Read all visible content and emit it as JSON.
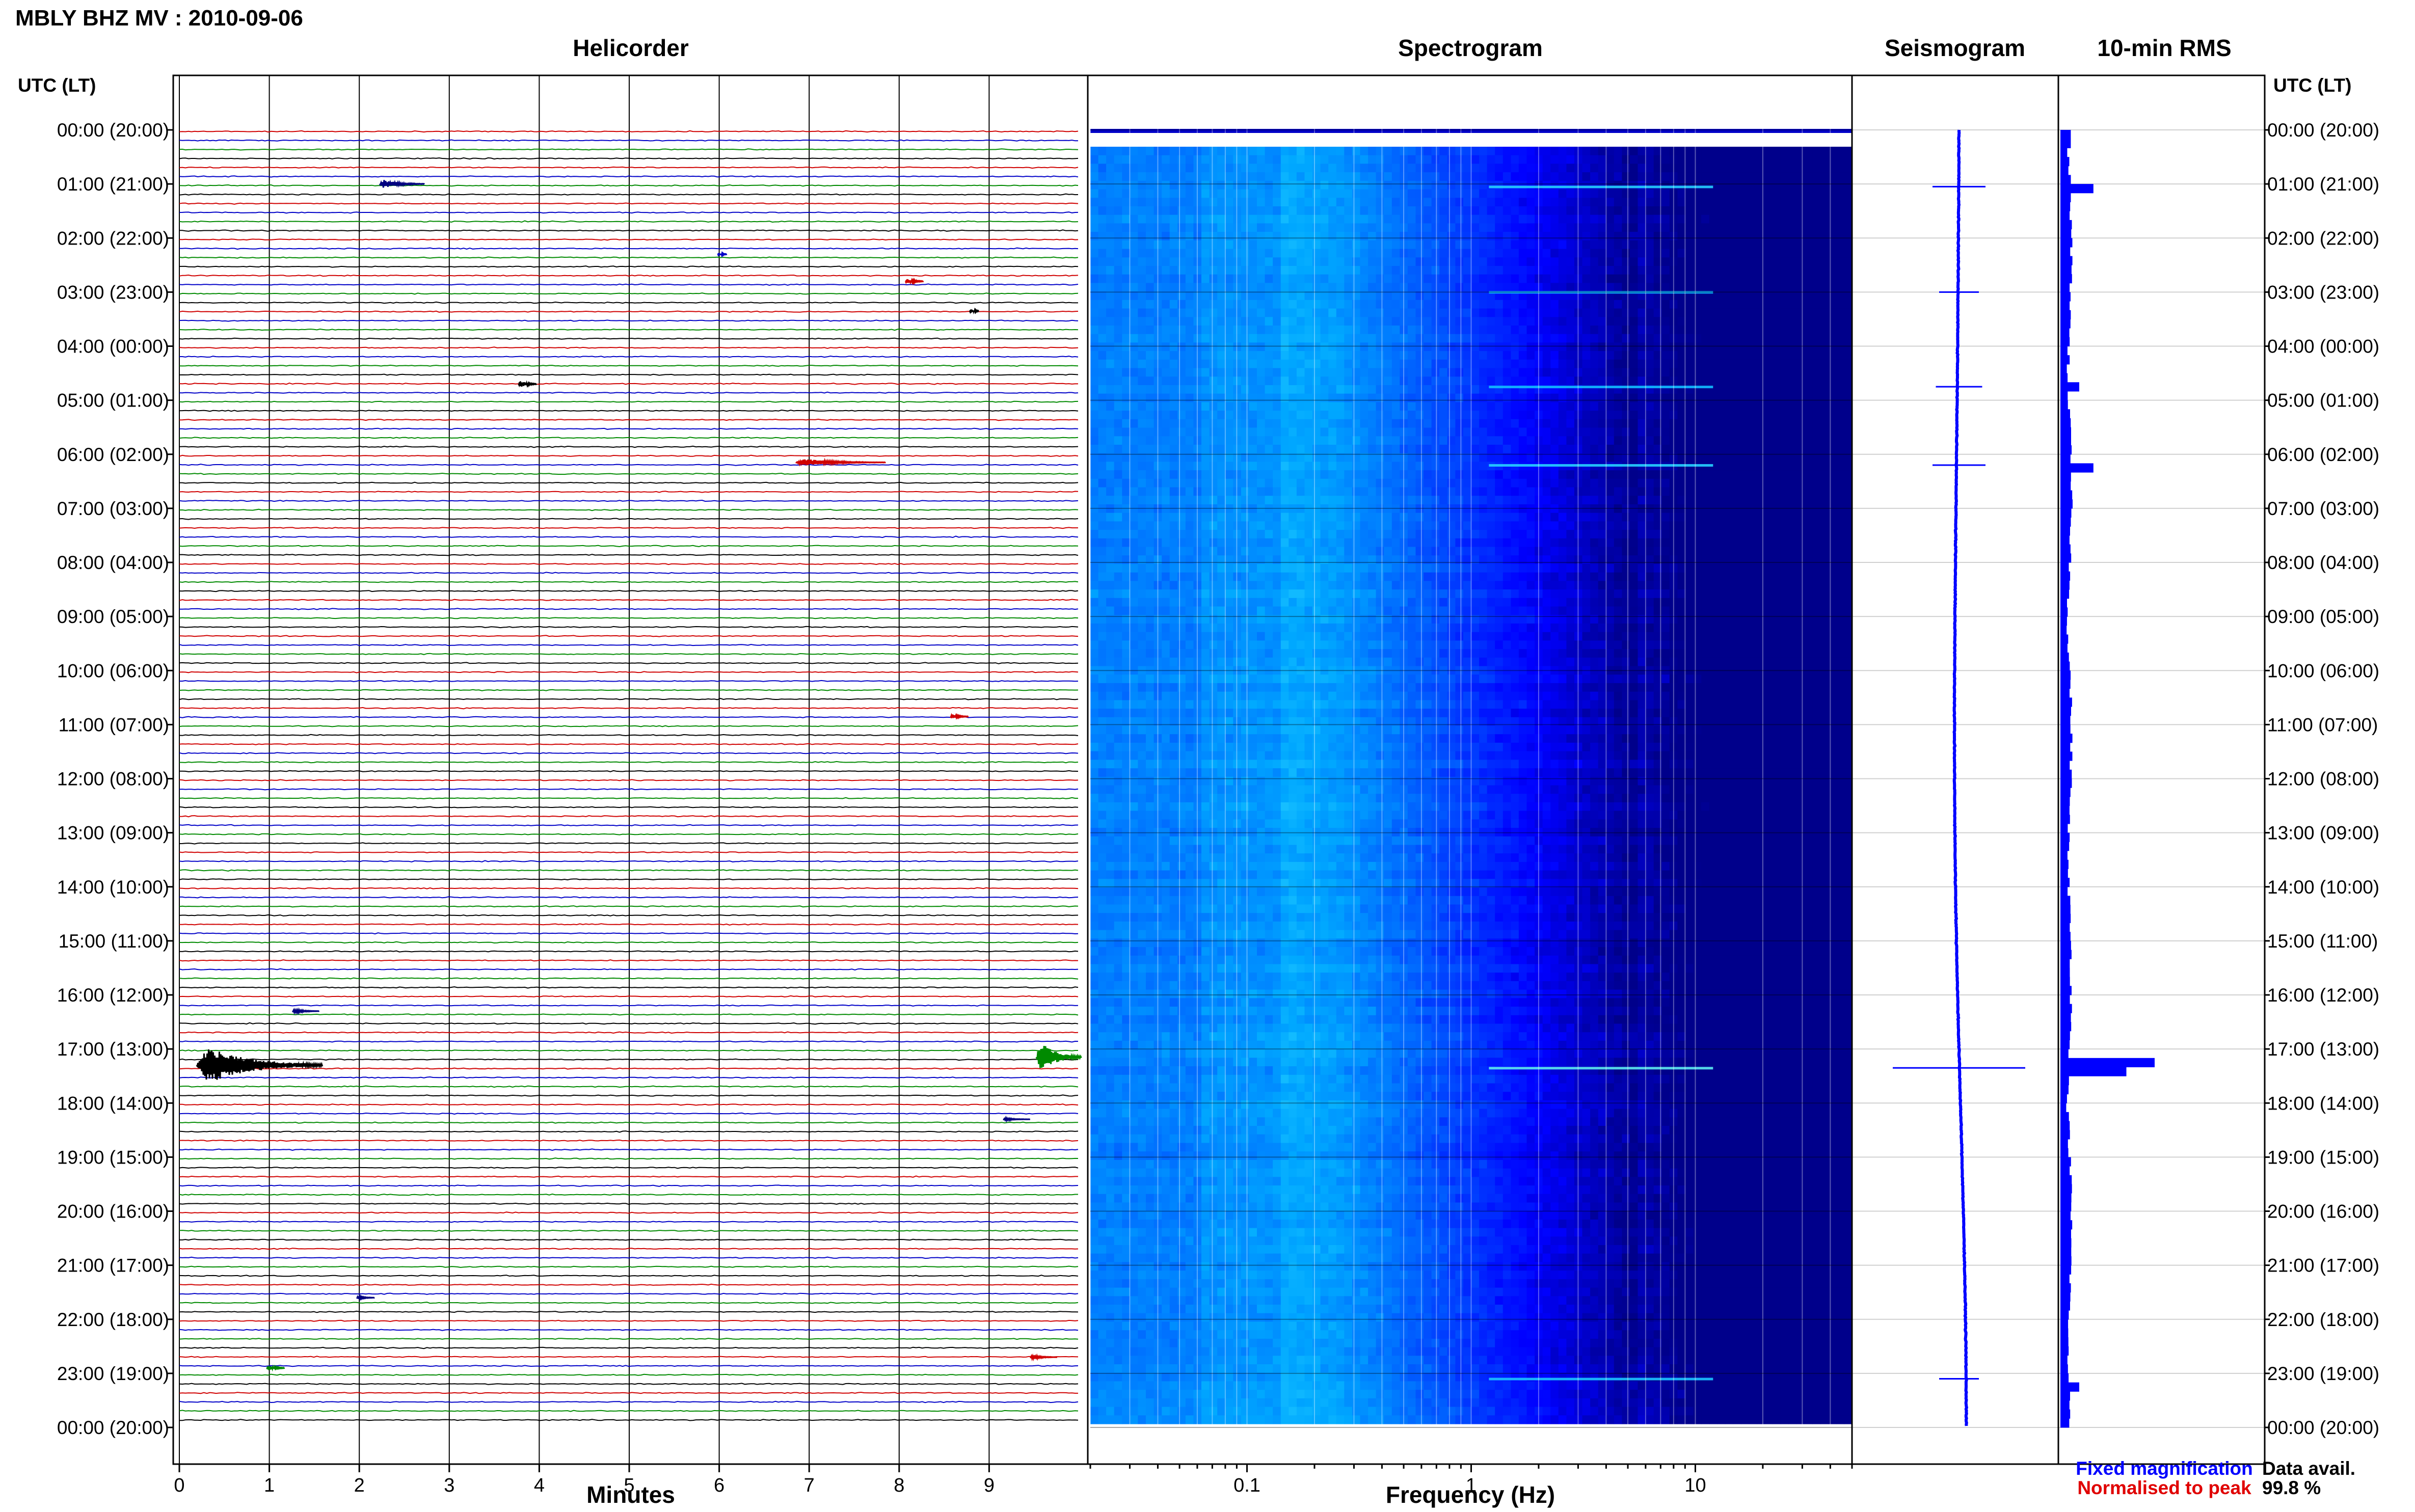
{
  "chart_data": {
    "type": "heatmap",
    "title": "MBLY BHZ MV : 2010-09-06",
    "panels": {
      "helicorder": "Helicorder",
      "spectrogram": "Spectrogram",
      "seismogram": "Seismogram",
      "rms": "10-min RMS"
    },
    "time_axis_title": "UTC (LT)",
    "time_labels": [
      "00:00 (20:00)",
      "01:00 (21:00)",
      "02:00 (22:00)",
      "03:00 (23:00)",
      "04:00 (00:00)",
      "05:00 (01:00)",
      "06:00 (02:00)",
      "07:00 (03:00)",
      "08:00 (04:00)",
      "09:00 (05:00)",
      "10:00 (06:00)",
      "11:00 (07:00)",
      "12:00 (08:00)",
      "13:00 (09:00)",
      "14:00 (10:00)",
      "15:00 (11:00)",
      "16:00 (12:00)",
      "17:00 (13:00)",
      "18:00 (14:00)",
      "19:00 (15:00)",
      "20:00 (16:00)",
      "21:00 (17:00)",
      "22:00 (18:00)",
      "23:00 (19:00)",
      "00:00 (20:00)"
    ],
    "helicorder": {
      "xlabel": "Minutes",
      "xticks": [
        0,
        1,
        2,
        3,
        4,
        5,
        6,
        7,
        8,
        9
      ],
      "xlim": [
        0,
        10
      ],
      "trace_colors": [
        "#d00000",
        "#0000c8",
        "#008a00",
        "#000000"
      ],
      "rows_per_hour": 6,
      "events": [
        {
          "hour": 1.0,
          "minute": 2.3,
          "amp": 0.6,
          "dur": 0.5,
          "color": "#000080"
        },
        {
          "hour": 2.3,
          "minute": 6.0,
          "amp": 0.2,
          "dur": 0.1,
          "color": "#0000c8"
        },
        {
          "hour": 2.8,
          "minute": 8.1,
          "amp": 0.4,
          "dur": 0.2,
          "color": "#d00000"
        },
        {
          "hour": 3.35,
          "minute": 8.8,
          "amp": 0.3,
          "dur": 0.1,
          "color": "#000000"
        },
        {
          "hour": 4.7,
          "minute": 3.8,
          "amp": 0.5,
          "dur": 0.2,
          "color": "#000000"
        },
        {
          "hour": 6.15,
          "minute": 7.0,
          "amp": 0.5,
          "dur": 1.0,
          "color": "#d00000"
        },
        {
          "hour": 10.85,
          "minute": 8.6,
          "amp": 0.3,
          "dur": 0.2,
          "color": "#d00000"
        },
        {
          "hour": 16.3,
          "minute": 1.3,
          "amp": 0.3,
          "dur": 0.3,
          "color": "#000080"
        },
        {
          "hour": 17.3,
          "minute": 0.4,
          "amp": 2.6,
          "dur": 1.4,
          "color": "#000000"
        },
        {
          "hour": 17.15,
          "minute": 9.6,
          "amp": 2.2,
          "dur": 0.5,
          "color": "#008a00"
        },
        {
          "hour": 18.3,
          "minute": 9.2,
          "amp": 0.2,
          "dur": 0.3,
          "color": "#000080"
        },
        {
          "hour": 21.6,
          "minute": 2.0,
          "amp": 0.2,
          "dur": 0.2,
          "color": "#000080"
        },
        {
          "hour": 22.9,
          "minute": 1.0,
          "amp": 0.4,
          "dur": 0.2,
          "color": "#008a00"
        },
        {
          "hour": 22.7,
          "minute": 9.5,
          "amp": 0.3,
          "dur": 0.3,
          "color": "#d00000"
        }
      ]
    },
    "spectrogram": {
      "xlabel": "Frequency (Hz)",
      "scale": "log",
      "xticks": [
        0.1,
        1,
        10
      ],
      "xlim": [
        0.02,
        50
      ],
      "colormap": [
        "#00008b",
        "#0000ff",
        "#0058ff",
        "#00a8ff",
        "#33ddff",
        "#a8ffd0"
      ]
    },
    "seismogram": {
      "color": "#0000ff",
      "spikes": [
        {
          "hour": 1.05,
          "width": 0.4
        },
        {
          "hour": 3.0,
          "width": 0.3
        },
        {
          "hour": 4.75,
          "width": 0.35
        },
        {
          "hour": 6.2,
          "width": 0.4
        },
        {
          "hour": 17.35,
          "width": 1.0
        },
        {
          "hour": 23.1,
          "width": 0.3
        }
      ]
    },
    "rms": {
      "color": "#0000ff",
      "values_per_hour": 6,
      "peaks": [
        {
          "hour": 1.0,
          "value": 0.35
        },
        {
          "hour": 4.7,
          "value": 0.2
        },
        {
          "hour": 6.2,
          "value": 0.35
        },
        {
          "hour": 17.2,
          "value": 1.0
        },
        {
          "hour": 17.35,
          "value": 0.7
        },
        {
          "hour": 23.1,
          "value": 0.2
        }
      ]
    },
    "legend": {
      "fixed": "Fixed magnification",
      "normalised": "Normalised to peak",
      "fixed_color": "#0000ff",
      "normalised_color": "#e00000"
    },
    "availability": {
      "label": "Data avail.",
      "value": "99.8 %"
    }
  }
}
